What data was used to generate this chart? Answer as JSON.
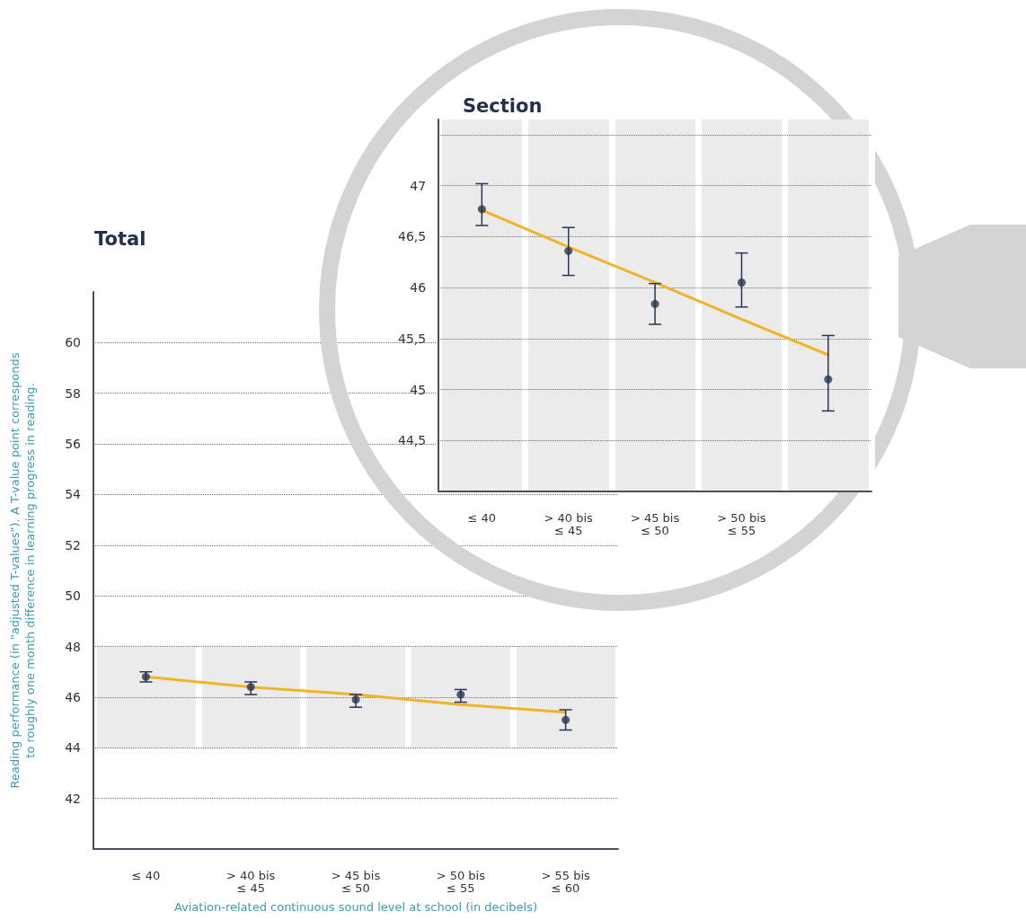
{
  "chart_data": [
    {
      "type": "scatter",
      "title": "Total",
      "xlabel": "Aviation-related continuous sound level at school (in decibels)",
      "ylabel": "Reading performance (in \"adjusted T-values\"). A T-value point corresponds to roughly one month difference in learning progress in reading.",
      "categories": [
        "≤ 40",
        "> 40 bis\n≤ 45",
        "> 45 bis\n≤ 50",
        "> 50 bis\n≤ 55",
        "> 55 bis\n≤ 60"
      ],
      "series": [
        {
          "type": "scatter",
          "color": "#2b3450",
          "marker": "circle",
          "values": [
            46.8,
            46.4,
            45.9,
            46.1,
            45.1
          ],
          "errors": [
            [
              46.6,
              47.0
            ],
            [
              46.1,
              46.6
            ],
            [
              45.6,
              46.1
            ],
            [
              45.8,
              46.3
            ],
            [
              44.7,
              45.5
            ]
          ]
        },
        {
          "type": "line",
          "color": "#f0b429",
          "line_style": "solid",
          "marker": "none",
          "values": [
            46.8,
            46.4,
            46.1,
            45.7,
            45.4
          ]
        }
      ],
      "ylim": [
        40,
        62
      ],
      "yticks": [
        42,
        44,
        46,
        48,
        50,
        52,
        54,
        56,
        58,
        60
      ],
      "grid": "y",
      "bands": [
        {
          "axis": "y",
          "from": 44,
          "to": 48,
          "color": "#ebebeb"
        }
      ]
    },
    {
      "type": "scatter",
      "title": "Section",
      "categories": [
        "≤ 40",
        "> 40 bis\n≤ 45",
        "> 45 bis\n≤ 50",
        "> 50 bis\n≤ 55",
        null
      ],
      "series": [
        {
          "type": "scatter",
          "color": "#2b3450",
          "marker": "circle",
          "values": [
            46.77,
            46.36,
            45.84,
            46.05,
            45.1
          ],
          "errors": [
            [
              46.61,
              47.02
            ],
            [
              46.12,
              46.59
            ],
            [
              45.64,
              46.04
            ],
            [
              45.81,
              46.34
            ],
            [
              44.79,
              45.53
            ]
          ]
        },
        {
          "type": "line",
          "color": "#f0b429",
          "line_style": "solid",
          "marker": "none",
          "values": [
            46.76,
            46.4,
            46.05,
            45.69,
            45.34
          ]
        }
      ],
      "ylim": [
        44,
        47.65
      ],
      "yticks": [
        {
          "value": 44.5,
          "label": "44,5"
        },
        45,
        {
          "value": 45.5,
          "label": "45,5"
        },
        46,
        {
          "value": 46.5,
          "label": "46,5"
        },
        47,
        {
          "value": 47.5,
          "label": null
        }
      ],
      "grid": "y",
      "bands": [
        {
          "axis": "y",
          "from": 44,
          "to": 47.65,
          "color": "#ebebeb"
        }
      ]
    }
  ]
}
